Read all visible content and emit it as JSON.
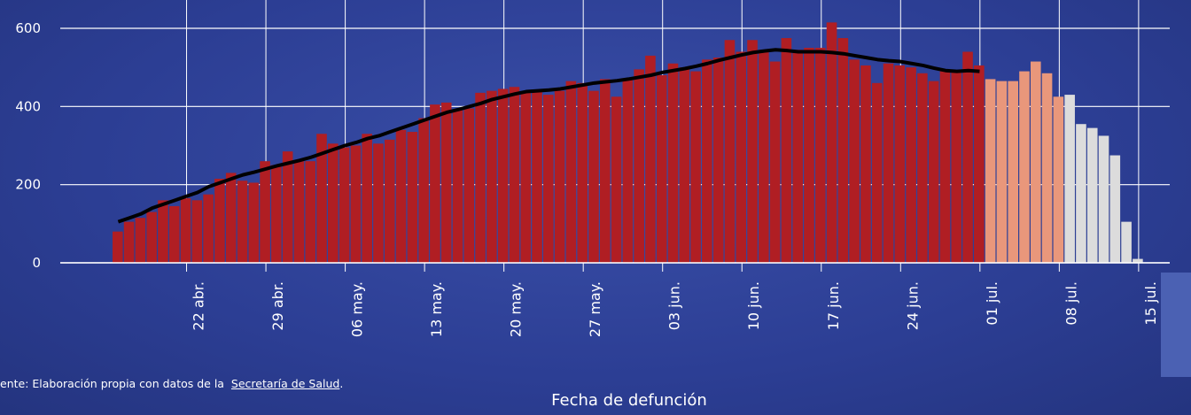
{
  "chart_data": {
    "type": "bar",
    "x_label": "Fecha de defunción",
    "source": "ente: Elaboración propia con datos de la",
    "source_link": "Secretaría de Salud",
    "source_end": ".",
    "categories": [
      null,
      null,
      null,
      null,
      null,
      null,
      null,
      "22 abr.",
      null,
      null,
      null,
      null,
      null,
      null,
      "29 abr.",
      null,
      null,
      null,
      null,
      null,
      null,
      "06 may.",
      null,
      null,
      null,
      null,
      null,
      null,
      "13 may.",
      null,
      null,
      null,
      null,
      null,
      null,
      "20 may.",
      null,
      null,
      null,
      null,
      null,
      null,
      "27 may.",
      null,
      null,
      null,
      null,
      null,
      null,
      "03 jun.",
      null,
      null,
      null,
      null,
      null,
      null,
      "10 jun.",
      null,
      null,
      null,
      null,
      null,
      null,
      "17 jun.",
      null,
      null,
      null,
      null,
      null,
      null,
      "24 jun.",
      null,
      null,
      null,
      null,
      null,
      null,
      "01 jul.",
      null,
      null,
      null,
      null,
      null,
      null,
      "08 jul.",
      null,
      null,
      null,
      null,
      null,
      null,
      "15 jul."
    ],
    "series": [
      {
        "color": "#b01e23",
        "values": [
          80,
          105,
          115,
          130,
          160,
          145,
          165,
          160,
          175,
          215,
          230,
          210,
          205,
          260,
          250,
          285,
          260,
          260,
          330,
          305,
          295,
          300,
          330,
          305,
          315,
          340,
          335,
          370,
          405,
          410,
          390,
          395,
          435,
          440,
          445,
          450,
          435,
          440,
          430,
          440,
          465,
          460,
          440,
          470,
          425,
          470,
          495,
          530,
          480,
          510,
          500,
          490,
          520,
          525,
          570,
          540,
          570,
          545,
          515,
          575,
          545,
          550,
          550,
          615,
          575,
          520,
          505,
          460,
          510,
          505,
          500,
          485,
          465,
          490,
          490,
          540,
          505,
          null,
          null,
          null,
          null,
          null,
          null,
          null,
          null,
          null,
          null,
          null,
          null,
          null,
          null,
          null
        ]
      },
      {
        "color": "#e9977b",
        "values": [
          null,
          null,
          null,
          null,
          null,
          null,
          null,
          null,
          null,
          null,
          null,
          null,
          null,
          null,
          null,
          null,
          null,
          null,
          null,
          null,
          null,
          null,
          null,
          null,
          null,
          null,
          null,
          null,
          null,
          null,
          null,
          null,
          null,
          null,
          null,
          null,
          null,
          null,
          null,
          null,
          null,
          null,
          null,
          null,
          null,
          null,
          null,
          null,
          null,
          null,
          null,
          null,
          null,
          null,
          null,
          null,
          null,
          null,
          null,
          null,
          null,
          null,
          null,
          null,
          null,
          null,
          null,
          null,
          null,
          null,
          null,
          null,
          null,
          null,
          null,
          null,
          null,
          470,
          465,
          465,
          490,
          515,
          485,
          425,
          null,
          null,
          null,
          null,
          null,
          null,
          null,
          null
        ]
      },
      {
        "color": "#dcdcdc",
        "values": [
          null,
          null,
          null,
          null,
          null,
          null,
          null,
          null,
          null,
          null,
          null,
          null,
          null,
          null,
          null,
          null,
          null,
          null,
          null,
          null,
          null,
          null,
          null,
          null,
          null,
          null,
          null,
          null,
          null,
          null,
          null,
          null,
          null,
          null,
          null,
          null,
          null,
          null,
          null,
          null,
          null,
          null,
          null,
          null,
          null,
          null,
          null,
          null,
          null,
          null,
          null,
          null,
          null,
          null,
          null,
          null,
          null,
          null,
          null,
          null,
          null,
          null,
          null,
          null,
          null,
          null,
          null,
          null,
          null,
          null,
          null,
          null,
          null,
          null,
          null,
          null,
          null,
          null,
          null,
          null,
          null,
          null,
          null,
          null,
          430,
          355,
          345,
          325,
          275,
          105,
          10,
          null
        ]
      },
      {
        "type": "line",
        "color": "#000000",
        "values": [
          105,
          115,
          125,
          140,
          150,
          160,
          170,
          180,
          195,
          205,
          215,
          225,
          232,
          240,
          248,
          255,
          262,
          270,
          280,
          290,
          300,
          308,
          318,
          325,
          335,
          345,
          355,
          365,
          375,
          385,
          392,
          400,
          408,
          418,
          425,
          432,
          438,
          440,
          442,
          445,
          450,
          455,
          460,
          463,
          466,
          470,
          475,
          480,
          487,
          492,
          497,
          503,
          510,
          518,
          525,
          532,
          538,
          542,
          545,
          543,
          540,
          540,
          540,
          538,
          535,
          530,
          525,
          520,
          517,
          515,
          510,
          505,
          498,
          492,
          490,
          492,
          490,
          null,
          null,
          null,
          null,
          null,
          null,
          null,
          null,
          null,
          null,
          null,
          null,
          null,
          null,
          null
        ]
      }
    ],
    "ylim": [
      0,
      600
    ],
    "yticks": [
      0,
      200,
      400,
      600
    ],
    "grid": true
  }
}
